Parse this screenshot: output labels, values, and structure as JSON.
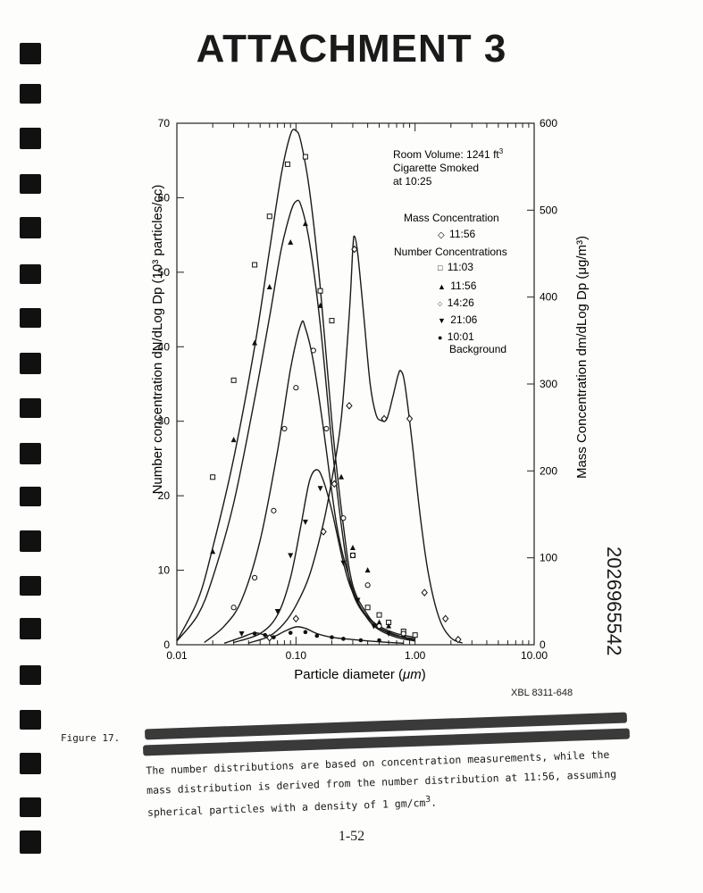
{
  "header": {
    "title": "ATTACHMENT 3"
  },
  "figure": {
    "xbl_code": "XBL 8311-648",
    "label": "Figure 17.",
    "caption_visible": "The number distributions are based on concentration measurements, while the mass distribution is derived from the number distribution at 11:56, assuming spherical particles with a density of 1 gm/cm",
    "caption_superscript": "3",
    "caption_end": ".",
    "page_number": "1-52",
    "side_id": "2026965542"
  },
  "chart_data": {
    "type": "line",
    "xscale": "log",
    "xlim": [
      0.01,
      10.0
    ],
    "ylim": [
      0,
      70
    ],
    "y2lim": [
      0,
      600
    ],
    "xlabel_pre": "Particle diameter (",
    "xlabel_mu": "μm",
    "xlabel_post": ")",
    "ylabel": "Number concentration dN/dLog Dp (10³ particles/cc)",
    "y2label": "Mass Concentration dm/dLog Dp (μg/m³)",
    "xticks": [
      {
        "v": 0.01,
        "label": "0.01"
      },
      {
        "v": 0.1,
        "label": "0.10"
      },
      {
        "v": 1.0,
        "label": "1.00"
      },
      {
        "v": 10.0,
        "label": "10.00"
      }
    ],
    "yticks": [
      0,
      10,
      20,
      30,
      40,
      50,
      60,
      70
    ],
    "y2ticks": [
      0,
      100,
      200,
      300,
      400,
      500,
      600
    ],
    "annotation": {
      "room_volume": "Room Volume: 1241 ft",
      "room_volume_sup": "3",
      "smoked_line1": "Cigarette Smoked",
      "smoked_line2": "at 10:25"
    },
    "legend": {
      "mass_heading": "Mass Concentration",
      "number_heading": "Number Concentrations",
      "mass_items": [
        {
          "marker": "◇",
          "label": "11:56"
        }
      ],
      "number_items": [
        {
          "marker": "□",
          "label": "11:03"
        },
        {
          "marker": "▲",
          "label": "11:56"
        },
        {
          "marker": "○",
          "label": "14:26"
        },
        {
          "marker": "▼",
          "label": "21:06"
        },
        {
          "marker": "●",
          "label": "10:01"
        }
      ],
      "background_label": "Background"
    },
    "series": [
      {
        "name": "11:03",
        "axis": "left",
        "marker": "square",
        "curve": [
          [
            0.01,
            0.5
          ],
          [
            0.015,
            6
          ],
          [
            0.02,
            13
          ],
          [
            0.03,
            25
          ],
          [
            0.045,
            40
          ],
          [
            0.06,
            53
          ],
          [
            0.075,
            63
          ],
          [
            0.09,
            68.5
          ],
          [
            0.1,
            69
          ],
          [
            0.11,
            67.5
          ],
          [
            0.13,
            61
          ],
          [
            0.16,
            48
          ],
          [
            0.2,
            30
          ],
          [
            0.25,
            16
          ],
          [
            0.3,
            8
          ],
          [
            0.4,
            4
          ],
          [
            0.5,
            2.5
          ],
          [
            0.7,
            1.5
          ],
          [
            1.0,
            1
          ]
        ],
        "points": [
          [
            0.02,
            22.5
          ],
          [
            0.03,
            35.5
          ],
          [
            0.045,
            51
          ],
          [
            0.06,
            57.5
          ],
          [
            0.085,
            64.5
          ],
          [
            0.12,
            65.5
          ],
          [
            0.16,
            47.5
          ],
          [
            0.2,
            43.5
          ],
          [
            0.3,
            12
          ],
          [
            0.4,
            5
          ],
          [
            0.5,
            4
          ],
          [
            0.6,
            3
          ],
          [
            0.8,
            1.8
          ],
          [
            1.0,
            1.3
          ]
        ]
      },
      {
        "name": "11:56",
        "axis": "left",
        "marker": "triangle-up",
        "curve": [
          [
            0.01,
            0.5
          ],
          [
            0.015,
            4
          ],
          [
            0.02,
            9
          ],
          [
            0.03,
            19
          ],
          [
            0.045,
            33
          ],
          [
            0.06,
            44
          ],
          [
            0.075,
            53
          ],
          [
            0.09,
            58
          ],
          [
            0.1,
            59.5
          ],
          [
            0.11,
            59
          ],
          [
            0.13,
            54
          ],
          [
            0.16,
            43
          ],
          [
            0.2,
            27
          ],
          [
            0.25,
            14
          ],
          [
            0.3,
            7
          ],
          [
            0.4,
            3.5
          ],
          [
            0.5,
            2.2
          ],
          [
            0.7,
            1.2
          ],
          [
            1.0,
            0.8
          ]
        ],
        "points": [
          [
            0.02,
            12.5
          ],
          [
            0.03,
            27.5
          ],
          [
            0.045,
            40.5
          ],
          [
            0.06,
            48
          ],
          [
            0.09,
            54
          ],
          [
            0.12,
            56.5
          ],
          [
            0.16,
            45.5
          ],
          [
            0.24,
            22.5
          ],
          [
            0.3,
            13
          ],
          [
            0.4,
            10
          ],
          [
            0.5,
            3
          ],
          [
            0.6,
            2.5
          ],
          [
            0.8,
            1.3
          ]
        ]
      },
      {
        "name": "14:26",
        "axis": "left",
        "marker": "circle",
        "curve": [
          [
            0.017,
            0.3
          ],
          [
            0.025,
            2.5
          ],
          [
            0.035,
            6
          ],
          [
            0.05,
            14
          ],
          [
            0.07,
            26
          ],
          [
            0.09,
            37
          ],
          [
            0.11,
            43
          ],
          [
            0.12,
            42.5
          ],
          [
            0.14,
            38
          ],
          [
            0.17,
            29
          ],
          [
            0.22,
            16
          ],
          [
            0.28,
            9
          ],
          [
            0.35,
            5
          ],
          [
            0.5,
            2.3
          ],
          [
            0.8,
            1
          ],
          [
            1.0,
            0.6
          ]
        ],
        "points": [
          [
            0.03,
            5
          ],
          [
            0.045,
            9
          ],
          [
            0.065,
            18
          ],
          [
            0.08,
            29
          ],
          [
            0.1,
            34.5
          ],
          [
            0.14,
            39.5
          ],
          [
            0.18,
            29
          ],
          [
            0.25,
            17
          ],
          [
            0.3,
            12
          ],
          [
            0.4,
            8
          ],
          [
            0.5,
            2.5
          ],
          [
            0.8,
            1.5
          ]
        ]
      },
      {
        "name": "21:06",
        "axis": "left",
        "marker": "triangle-down",
        "curve": [
          [
            0.03,
            0.3
          ],
          [
            0.05,
            1.5
          ],
          [
            0.07,
            4
          ],
          [
            0.09,
            9
          ],
          [
            0.11,
            16
          ],
          [
            0.13,
            22
          ],
          [
            0.15,
            23.5
          ],
          [
            0.17,
            22
          ],
          [
            0.2,
            18
          ],
          [
            0.25,
            11
          ],
          [
            0.3,
            7
          ],
          [
            0.4,
            3.5
          ],
          [
            0.5,
            2
          ],
          [
            0.7,
            1
          ],
          [
            1.0,
            0.5
          ]
        ],
        "points": [
          [
            0.035,
            1.5
          ],
          [
            0.07,
            4.5
          ],
          [
            0.09,
            12
          ],
          [
            0.12,
            16.5
          ],
          [
            0.16,
            21
          ],
          [
            0.25,
            11
          ],
          [
            0.33,
            6
          ],
          [
            0.45,
            2.5
          ],
          [
            0.6,
            1.5
          ]
        ]
      },
      {
        "name": "10:01 Background",
        "axis": "left",
        "marker": "filled-circle",
        "curve": [
          [
            0.025,
            0.2
          ],
          [
            0.035,
            1
          ],
          [
            0.045,
            1.6
          ],
          [
            0.055,
            1.3
          ],
          [
            0.065,
            1.1
          ],
          [
            0.08,
            1.8
          ],
          [
            0.1,
            2.4
          ],
          [
            0.12,
            2.2
          ],
          [
            0.15,
            1.5
          ],
          [
            0.2,
            1
          ],
          [
            0.3,
            0.7
          ],
          [
            0.5,
            0.4
          ],
          [
            0.8,
            0.2
          ]
        ],
        "points": [
          [
            0.045,
            1.5
          ],
          [
            0.055,
            1.3
          ],
          [
            0.065,
            1
          ],
          [
            0.09,
            1.6
          ],
          [
            0.12,
            1.7
          ],
          [
            0.15,
            1.2
          ],
          [
            0.2,
            1
          ],
          [
            0.25,
            0.8
          ],
          [
            0.35,
            0.6
          ],
          [
            0.5,
            0.6
          ]
        ]
      },
      {
        "name": "Mass 11:56",
        "axis": "right",
        "marker": "diamond",
        "curve": [
          [
            0.04,
            2
          ],
          [
            0.06,
            10
          ],
          [
            0.08,
            25
          ],
          [
            0.1,
            45
          ],
          [
            0.13,
            80
          ],
          [
            0.17,
            140
          ],
          [
            0.2,
            190
          ],
          [
            0.24,
            260
          ],
          [
            0.28,
            380
          ],
          [
            0.3,
            455
          ],
          [
            0.31,
            470
          ],
          [
            0.33,
            450
          ],
          [
            0.37,
            380
          ],
          [
            0.42,
            300
          ],
          [
            0.47,
            265
          ],
          [
            0.52,
            258
          ],
          [
            0.58,
            260
          ],
          [
            0.65,
            285
          ],
          [
            0.72,
            310
          ],
          [
            0.76,
            315
          ],
          [
            0.82,
            300
          ],
          [
            0.95,
            230
          ],
          [
            1.1,
            150
          ],
          [
            1.3,
            80
          ],
          [
            1.6,
            30
          ],
          [
            2.0,
            8
          ],
          [
            2.5,
            2
          ]
        ],
        "points": [
          [
            0.06,
            8
          ],
          [
            0.1,
            30
          ],
          [
            0.17,
            130
          ],
          [
            0.21,
            185
          ],
          [
            0.28,
            275
          ],
          [
            0.31,
            455
          ],
          [
            0.55,
            260
          ],
          [
            0.9,
            260
          ],
          [
            1.2,
            60
          ],
          [
            1.8,
            30
          ],
          [
            2.3,
            6
          ]
        ]
      }
    ]
  }
}
